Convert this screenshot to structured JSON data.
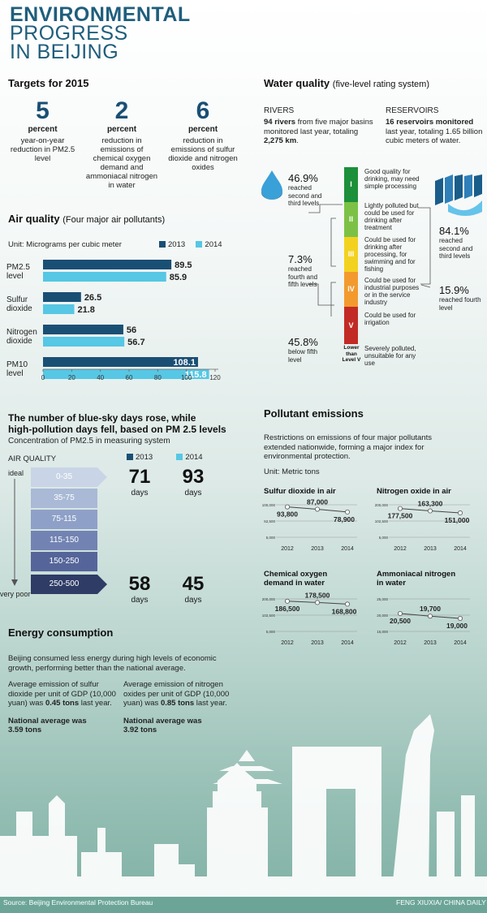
{
  "header": {
    "line1": "ENVIRONMENTAL",
    "line2": "PROGRESS",
    "line3": "IN BEIJING"
  },
  "targets": {
    "heading": "Targets for 2015",
    "items": [
      {
        "value": "5",
        "unit": "percent",
        "desc": "year-on-year reduction in PM2.5 level"
      },
      {
        "value": "2",
        "unit": "percent",
        "desc": "reduction in emissions of chemical oxygen demand and ammoniacal nitrogen in water"
      },
      {
        "value": "6",
        "unit": "percent",
        "desc": "reduction in emissions of sulfur dioxide and nitrogen oxides"
      }
    ]
  },
  "colors": {
    "y2013": "#1a4f74",
    "y2014": "#56c7e4"
  },
  "air": {
    "heading": "Air quality",
    "subheading": "(Four major air pollutants)",
    "unit": "Unit: Micrograms per cubic meter",
    "legend": [
      "2013",
      "2014"
    ]
  },
  "blue_sky": {
    "heading_line1": "The number of blue-sky days rose, while",
    "heading_line2": "high-pollution days fell, based on PM 2.5 levels",
    "subheading": "Concentration of PM2.5 in measuring system",
    "axis_label": "AIR QUALITY",
    "ideal": "ideal",
    "very_poor": "very poor",
    "legend": [
      "2013",
      "2014"
    ],
    "levels": [
      "0-35",
      "35-75",
      "75-115",
      "115-150",
      "150-250",
      "250-500"
    ],
    "good_days": {
      "y2013": "71",
      "y2014": "93",
      "unit": "days"
    },
    "bad_days": {
      "y2013": "58",
      "y2014": "45",
      "unit": "days"
    }
  },
  "water": {
    "heading": "Water quality",
    "subheading": "(five-level rating system)",
    "rivers_title": "RIVERS",
    "rivers_bold1": "94 rivers",
    "rivers_text1": " from five major basins monitored last year, totaling ",
    "rivers_bold2": "2,275 km",
    "rivers_text2": ".",
    "reservoirs_title": "RESERVOIRS",
    "reservoirs_bold": "16 reservoirs monitored",
    "reservoirs_text": " last year, totaling 1.65 billion cubic meters of water.",
    "levels": [
      {
        "label": "I",
        "color": "#1c8f3a",
        "desc": "Good quality for drinking, may need simple processing"
      },
      {
        "label": "II",
        "color": "#7cc146",
        "desc": "Lightly polluted but could be used for drinking after treatment"
      },
      {
        "label": "III",
        "color": "#f3d21f",
        "desc": "Could be used for drinking after processing, for swimming and for fishing"
      },
      {
        "label": "IV",
        "color": "#f39a2e",
        "desc": "Could be used for industrial purposes or in the service industry"
      },
      {
        "label": "V",
        "color": "#c22b25",
        "desc": "Could be used for irrigation"
      },
      {
        "label": "Lower than Level V",
        "color": "",
        "desc": "Severely polluted, unsuitable for any use"
      }
    ],
    "rivers_stats": [
      {
        "pct": "46.9%",
        "label": "reached second and third levels"
      },
      {
        "pct": "7.3%",
        "label": "reached fourth and fifth levels"
      },
      {
        "pct": "45.8%",
        "label": "below fifth level"
      }
    ],
    "reservoir_stats": [
      {
        "pct": "84.1%",
        "label": "reached second and third levels"
      },
      {
        "pct": "15.9%",
        "label": "reached fourth level"
      }
    ]
  },
  "pollutants": {
    "heading": "Pollutant emissions",
    "intro": "Restrictions on emissions of four major pollutants extended nationwide, forming a major index for environmental protection.",
    "unit": "Unit: Metric tons"
  },
  "energy": {
    "heading": "Energy consumption",
    "intro": "Beijing consumed less energy during high levels of economic growth, performing better than the national average.",
    "left_text": "Average emission of sulfur dioxide per unit of GDP (10,000 yuan) was ",
    "left_bold": "0.45 tons",
    "left_text2": " last year.",
    "left_nat1": "National average was",
    "left_nat2": "3.59 tons",
    "right_text": "Average emission of nitrogen oxides per unit of GDP (10,000 yuan) was ",
    "right_bold": "0.85 tons",
    "right_text2": " last year.",
    "right_nat1": "National average was",
    "right_nat2": "3.92 tons"
  },
  "footer": {
    "source": "Source: Beijing Environmental Protection Bureau",
    "credit": "FENG XIUXIA/ CHINA DAILY"
  },
  "chart_data": [
    {
      "type": "bar",
      "orientation": "horizontal",
      "categories": [
        "PM2.5 level",
        "Sulfur dioxide",
        "Nitrogen dioxide",
        "PM10 level"
      ],
      "series": [
        {
          "name": "2013",
          "values": [
            89.5,
            26.5,
            56,
            108.1
          ]
        },
        {
          "name": "2014",
          "values": [
            85.9,
            21.8,
            56.7,
            115.8
          ]
        }
      ],
      "xlim": [
        0,
        120
      ],
      "xticks": [
        "0",
        "20",
        "40",
        "60",
        "80",
        "100",
        "120"
      ],
      "legend": "top-right"
    },
    {
      "type": "line",
      "title": "Sulfur dioxide in air",
      "x": [
        "2012",
        "2013",
        "2014"
      ],
      "values": [
        93800,
        87000,
        78900
      ],
      "labels": [
        "93,800",
        "87,000",
        "78,900"
      ],
      "ylim": [
        5000,
        100000
      ],
      "yticks": [
        "100,000",
        "52,500",
        "5,000"
      ]
    },
    {
      "type": "line",
      "title": "Nitrogen oxide in air",
      "x": [
        "2012",
        "2013",
        "2014"
      ],
      "values": [
        177500,
        163300,
        151000
      ],
      "labels": [
        "177,500",
        "163,300",
        "151,000"
      ],
      "ylim": [
        5000,
        200000
      ],
      "yticks": [
        "200,000",
        "102,500",
        "5,000"
      ]
    },
    {
      "type": "line",
      "title_line1": "Chemical oxygen",
      "title_line2": "demand in water",
      "x": [
        "2012",
        "2013",
        "2014"
      ],
      "values": [
        186500,
        178500,
        168800
      ],
      "labels": [
        "186,500",
        "178,500",
        "168,800"
      ],
      "ylim": [
        5000,
        200000
      ],
      "yticks": [
        "200,000",
        "102,500",
        "5,000"
      ]
    },
    {
      "type": "line",
      "title_line1": "Ammoniacal nitrogen",
      "title_line2": "in water",
      "x": [
        "2012",
        "2013",
        "2014"
      ],
      "values": [
        20500,
        19700,
        19000
      ],
      "labels": [
        "20,500",
        "19,700",
        "19,000"
      ],
      "ylim": [
        15000,
        25000
      ],
      "yticks": [
        "25,000",
        "20,000",
        "15,000"
      ]
    }
  ]
}
